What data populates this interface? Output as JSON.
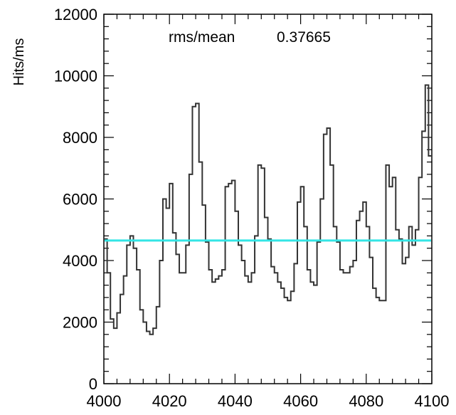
{
  "chart_data": {
    "type": "line",
    "style": "step-histogram",
    "title": "",
    "xlabel": "",
    "ylabel": "Hits/ms",
    "xlim": [
      4000,
      4100
    ],
    "ylim": [
      0,
      12000
    ],
    "x_ticks": [
      4000,
      4020,
      4040,
      4060,
      4080,
      4100
    ],
    "y_ticks": [
      0,
      2000,
      4000,
      6000,
      8000,
      10000,
      12000
    ],
    "grid": false,
    "annotation": {
      "label": "rms/mean",
      "value": "0.37665"
    },
    "mean_line": {
      "value": 4650,
      "color": "#33e5e5"
    },
    "line_color": "#333333",
    "series": [
      {
        "x": [
          4000,
          4001,
          4002,
          4003,
          4004,
          4005,
          4006,
          4007,
          4008,
          4009,
          4010,
          4011,
          4012,
          4013,
          4014,
          4015,
          4016,
          4017,
          4018,
          4019,
          4020,
          4021,
          4022,
          4023,
          4024,
          4025,
          4026,
          4027,
          4028,
          4029,
          4030,
          4031,
          4032,
          4033,
          4034,
          4035,
          4036,
          4037,
          4038,
          4039,
          4040,
          4041,
          4042,
          4043,
          4044,
          4045,
          4046,
          4047,
          4048,
          4049,
          4050,
          4051,
          4052,
          4053,
          4054,
          4055,
          4056,
          4057,
          4058,
          4059,
          4060,
          4061,
          4062,
          4063,
          4064,
          4065,
          4066,
          4067,
          4068,
          4069,
          4070,
          4071,
          4072,
          4073,
          4074,
          4075,
          4076,
          4077,
          4078,
          4079,
          4080,
          4081,
          4082,
          4083,
          4084,
          4085,
          4086,
          4087,
          4088,
          4089,
          4090,
          4091,
          4092,
          4093,
          4094,
          4095,
          4096,
          4097,
          4098,
          4099
        ],
        "values": [
          4700,
          3600,
          2100,
          1800,
          2300,
          2900,
          3500,
          4500,
          4800,
          4400,
          3700,
          2400,
          2000,
          1700,
          1600,
          1800,
          2500,
          4000,
          6000,
          5700,
          6500,
          4900,
          4200,
          3600,
          3600,
          4500,
          6800,
          9000,
          9100,
          7200,
          5800,
          4600,
          3700,
          3300,
          3400,
          3500,
          3700,
          6400,
          6500,
          6600,
          5600,
          4500,
          4000,
          3500,
          3300,
          3600,
          4800,
          7100,
          7000,
          5400,
          4700,
          3800,
          3600,
          3300,
          3100,
          2800,
          2700,
          3000,
          3900,
          5900,
          6400,
          5100,
          3700,
          3300,
          3200,
          4600,
          6000,
          8100,
          8300,
          7100,
          5100,
          4600,
          3700,
          3600,
          3600,
          3800,
          4000,
          5300,
          5600,
          5900,
          5100,
          4100,
          3100,
          2800,
          2700,
          2700,
          7100,
          6400,
          6700,
          5000,
          4700,
          3900,
          4100,
          5100,
          4500,
          5000,
          6700,
          8200,
          9700,
          7400
        ]
      }
    ]
  }
}
